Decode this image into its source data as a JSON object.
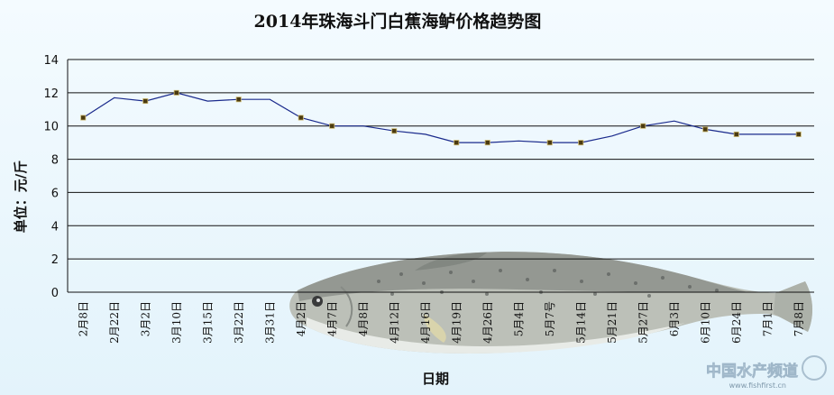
{
  "watermark": {
    "cn": "中国水产频道",
    "en": "www.fishfirst.cn"
  },
  "chart_data": {
    "type": "line",
    "title": "2014年珠海斗门白蕉海鲈价格趋势图",
    "xlabel": "日期",
    "ylabel": "单位：元/斤",
    "ylim": [
      0,
      14
    ],
    "yticks": [
      "0",
      "2",
      "4",
      "6",
      "8",
      "10",
      "12",
      "14"
    ],
    "grid": true,
    "categories": [
      "2月8日",
      "2月22日",
      "3月2日",
      "3月10日",
      "3月15日",
      "3月22日",
      "3月31日",
      "4月2日",
      "4月7日",
      "4月8日",
      "4月12日",
      "4月16日",
      "4月19日",
      "4月26日",
      "5月4日",
      "5月7号",
      "5月14日",
      "5月21日",
      "5月27日",
      "6月3日",
      "6月10日",
      "6月24日",
      "7月1日",
      "7月8日"
    ],
    "series": [
      {
        "color": "#1a2a8c",
        "values": [
          10.5,
          11.7,
          11.5,
          12.0,
          11.5,
          11.6,
          11.6,
          10.5,
          10.0,
          10.0,
          9.7,
          9.5,
          9.0,
          9.0,
          9.1,
          9.0,
          9.0,
          9.4,
          10.0,
          10.3,
          9.8,
          9.5,
          9.5,
          9.5
        ],
        "markers": [
          true,
          false,
          true,
          true,
          false,
          true,
          false,
          true,
          true,
          false,
          true,
          false,
          true,
          true,
          false,
          true,
          true,
          false,
          true,
          false,
          true,
          true,
          false,
          true
        ]
      }
    ]
  }
}
